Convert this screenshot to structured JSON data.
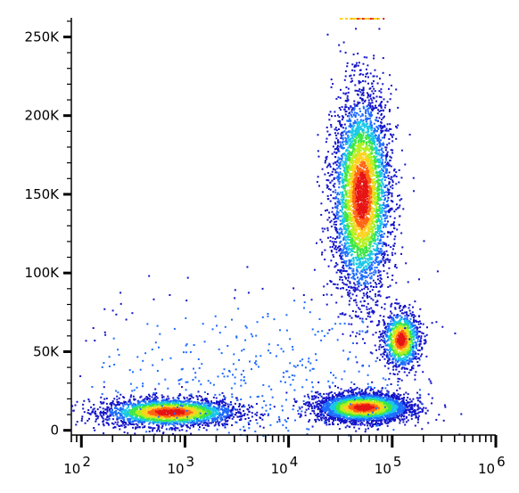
{
  "chart_data": {
    "type": "scatter",
    "title": "",
    "xlabel": "",
    "ylabel": "",
    "x_scale": "log",
    "xlim": [
      80,
      1000000
    ],
    "ylim": [
      -3000,
      262144
    ],
    "grid": false,
    "legend": "none",
    "x_ticks": [
      {
        "value": 100,
        "base": "10",
        "exp": "2"
      },
      {
        "value": 1000,
        "base": "10",
        "exp": "3"
      },
      {
        "value": 10000,
        "base": "10",
        "exp": "4"
      },
      {
        "value": 100000,
        "base": "10",
        "exp": "5"
      },
      {
        "value": 1000000,
        "base": "10",
        "exp": "6"
      }
    ],
    "y_ticks": [
      {
        "value": 0,
        "label": "0"
      },
      {
        "value": 50000,
        "label": "50K"
      },
      {
        "value": 100000,
        "label": "100K"
      },
      {
        "value": 150000,
        "label": "150K"
      },
      {
        "value": 200000,
        "label": "200K"
      },
      {
        "value": 250000,
        "label": "250K"
      }
    ],
    "density_colormap": [
      "#1414c8",
      "#1e6cff",
      "#19c8e6",
      "#3ce646",
      "#b4f01e",
      "#ffd21e",
      "#ff6414",
      "#e61414"
    ],
    "populations": [
      {
        "name": "",
        "x_center": 700,
        "y_center": 12000,
        "x_spread_decades": 0.32,
        "y_spread": 4500,
        "count": 2600
      },
      {
        "name": "",
        "x_center": 50000,
        "y_center": 150000,
        "x_spread_decades": 0.14,
        "y_spread": 32000,
        "count": 4200
      },
      {
        "name": "",
        "x_center": 52000,
        "y_center": 15000,
        "x_spread_decades": 0.22,
        "y_spread": 4500,
        "count": 3600
      },
      {
        "name": "",
        "x_center": 120000,
        "y_center": 58000,
        "x_spread_decades": 0.09,
        "y_spread": 9000,
        "count": 1100
      },
      {
        "name": "",
        "x_center": 5000,
        "y_center": 30000,
        "x_spread_decades": 0.9,
        "y_spread": 30000,
        "count": 500
      }
    ]
  }
}
